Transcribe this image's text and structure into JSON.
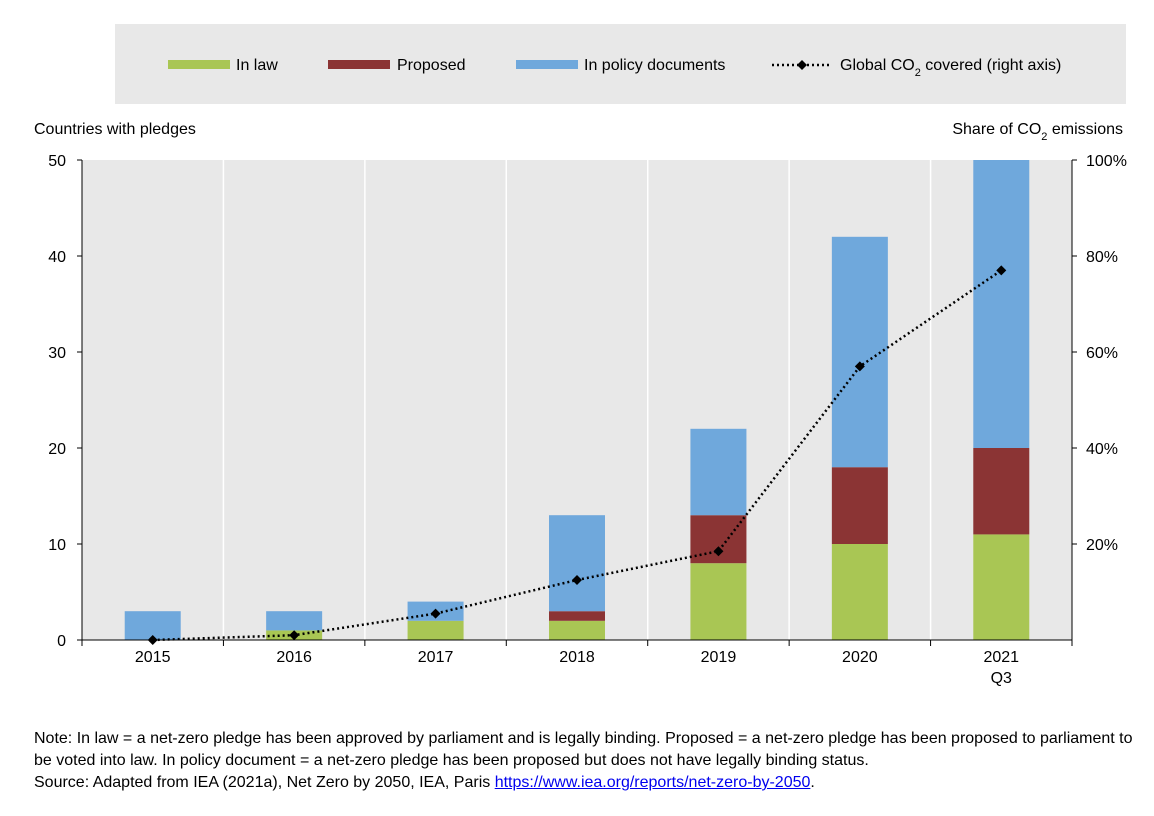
{
  "chart_data": {
    "type": "bar",
    "stacked": true,
    "categories": [
      "2015",
      "2016",
      "2017",
      "2018",
      "2019",
      "2020",
      "2021"
    ],
    "category_sublabels": [
      "",
      "",
      "",
      "",
      "",
      "",
      "Q3"
    ],
    "series": [
      {
        "name": "In law",
        "color": "#a9c654",
        "values": [
          0,
          1,
          2,
          2,
          8,
          10,
          11
        ]
      },
      {
        "name": "Proposed",
        "color": "#8b3434",
        "values": [
          0,
          0,
          0,
          1,
          5,
          8,
          9
        ]
      },
      {
        "name": "In policy documents",
        "color": "#6fa8dc",
        "values": [
          3,
          2,
          2,
          10,
          9,
          24,
          30
        ]
      }
    ],
    "line_series": {
      "name_prefix": "Global CO",
      "name_sub": "2",
      "name_suffix": " covered (right axis)",
      "axis": "right",
      "color": "#000000",
      "values": [
        0,
        1,
        5.5,
        12.5,
        18.5,
        57,
        77
      ]
    },
    "left_axis": {
      "label": "Countries with pledges",
      "min": 0,
      "max": 50,
      "ticks": [
        0,
        10,
        20,
        30,
        40,
        50
      ]
    },
    "right_axis": {
      "label_prefix": "Share of CO",
      "label_sub": "2",
      "label_suffix": " emissions",
      "min": 0,
      "max": 100,
      "ticks": [
        20,
        40,
        60,
        80,
        100
      ],
      "tick_suffix": "%"
    },
    "legend_position": "top",
    "grid": "vertical"
  },
  "note": {
    "text": "Note: In law = a net-zero pledge has been approved by parliament and is legally binding. Proposed = a net-zero pledge has been proposed to parliament to be voted into law. In policy document = a net-zero pledge has been proposed but does not have legally binding status.",
    "source_prefix": "Source: Adapted from IEA (2021a), Net Zero by 2050, IEA, Paris ",
    "source_link": "https://www.iea.org/reports/net-zero-by-2050",
    "source_suffix": "."
  }
}
